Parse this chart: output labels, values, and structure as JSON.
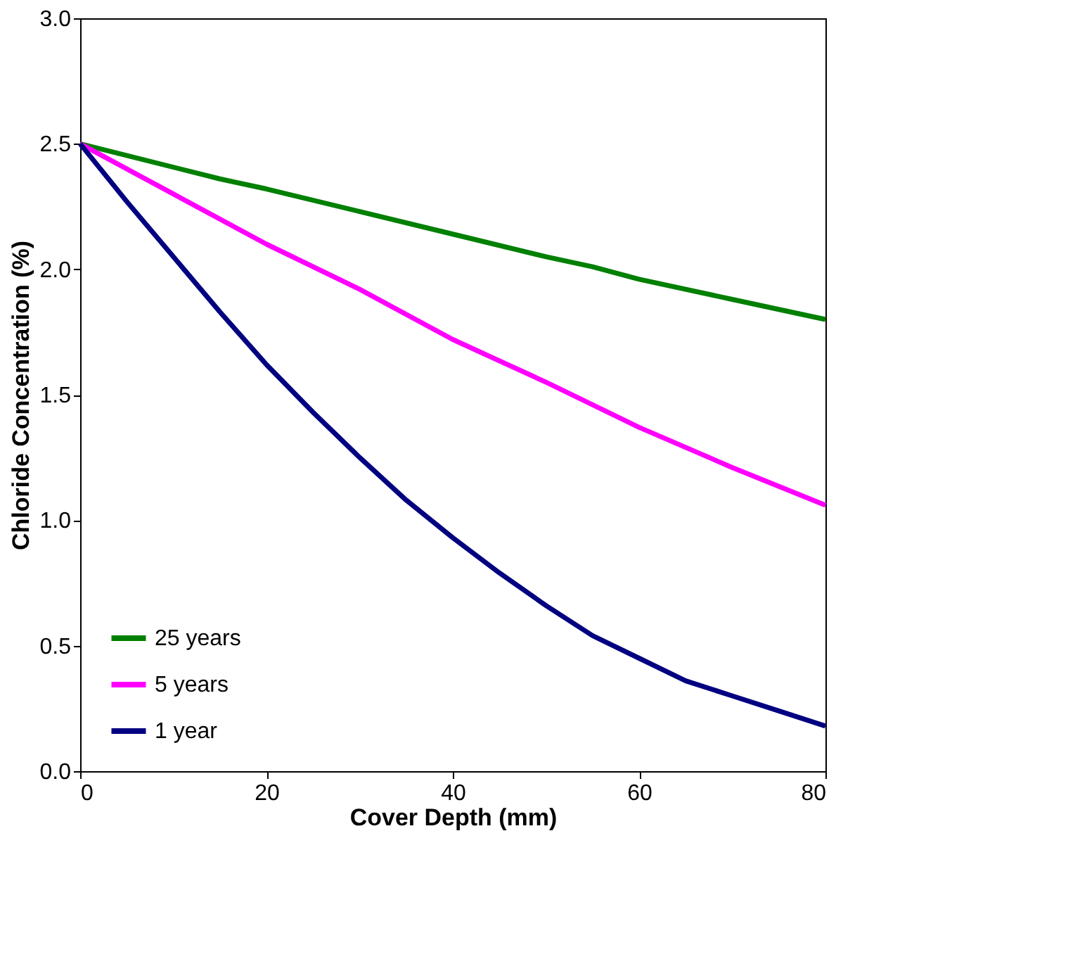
{
  "chart_data": {
    "type": "line",
    "xlabel": "Cover Depth (mm)",
    "ylabel": "Chloride Concentration (%)",
    "xlim": [
      0,
      80
    ],
    "xticks": [
      0,
      20,
      40,
      60,
      80
    ],
    "ylim": [
      0,
      3.0
    ],
    "yticks": [
      {
        "value": 0,
        "label": "0.0"
      },
      {
        "value": 0.5,
        "label": "0.5"
      },
      {
        "value": 1,
        "label": "1.0"
      },
      {
        "value": 1.5,
        "label": "1.5"
      },
      {
        "value": 2,
        "label": "2.0"
      },
      {
        "value": 2.5,
        "label": "2.5"
      },
      {
        "value": 3,
        "label": "3.0"
      }
    ],
    "grid": false,
    "legend": "bottom left",
    "marker": "none",
    "line_style": "solid",
    "series": [
      {
        "name": "25 years",
        "color": "#008000",
        "x": [
          0,
          15,
          20,
          30,
          40,
          50,
          55,
          60,
          70,
          80
        ],
        "values": [
          2.5,
          2.36,
          2.32,
          2.23,
          2.14,
          2.05,
          2.01,
          1.96,
          1.88,
          1.8
        ]
      },
      {
        "name": "5 years",
        "color": "#ff00ff",
        "x": [
          0,
          10,
          20,
          30,
          40,
          50,
          60,
          70,
          80
        ],
        "values": [
          2.5,
          2.3,
          2.1,
          1.92,
          1.72,
          1.55,
          1.37,
          1.21,
          1.06
        ]
      },
      {
        "name": "1 year",
        "color": "#000080",
        "x": [
          0,
          5,
          10,
          15,
          20,
          25,
          30,
          35,
          40,
          45,
          50,
          55,
          60,
          65,
          70,
          75,
          80
        ],
        "values": [
          2.5,
          2.27,
          2.05,
          1.83,
          1.62,
          1.43,
          1.25,
          1.08,
          0.93,
          0.79,
          0.66,
          0.54,
          0.45,
          0.36,
          0.3,
          0.24,
          0.18
        ]
      }
    ]
  }
}
